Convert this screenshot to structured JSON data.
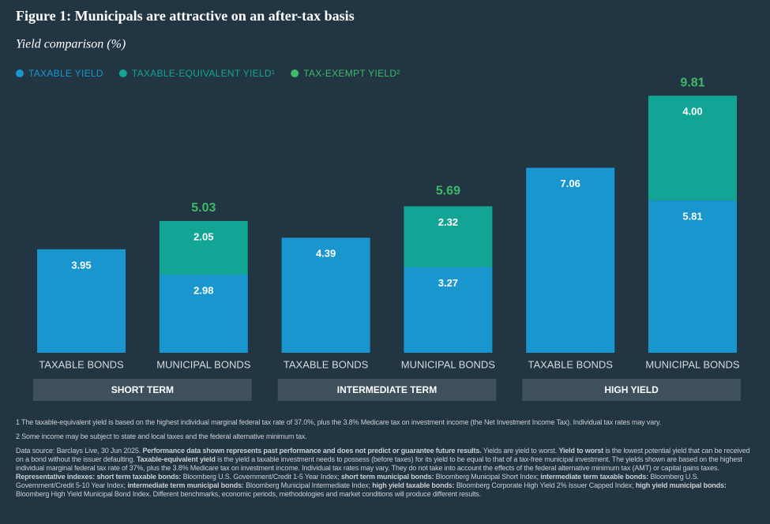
{
  "chart_data": {
    "type": "stacked_bar",
    "title": "Figure 1: Municipals are attractive on an after-tax basis",
    "subtitle": "Yield comparison (%)",
    "categories": [
      "TAXABLE BONDS",
      "MUNICIPAL BONDS",
      "TAXABLE BONDS",
      "MUNICIPAL BONDS",
      "TAXABLE BONDS",
      "MUNICIPAL BONDS"
    ],
    "groups": [
      "SHORT TERM",
      "INTERMEDIATE TERM",
      "HIGH YIELD"
    ],
    "series": [
      {
        "name": "TAXABLE YIELD",
        "color": "#1a96cf",
        "values": [
          3.95,
          2.98,
          4.39,
          3.27,
          7.06,
          5.81
        ]
      },
      {
        "name": "TAXABLE-EQUIVALENT YIELD¹",
        "color": "#12a596",
        "values": [
          null,
          2.05,
          null,
          2.32,
          null,
          4.0
        ],
        "value_labels": [
          null,
          "2.05",
          null,
          "2.32",
          null,
          "4.00"
        ]
      }
    ],
    "totals": {
      "name": "TAX-EXEMPT YIELD²",
      "color": "#3dba68",
      "values": [
        null,
        5.03,
        null,
        5.69,
        null,
        9.81
      ]
    },
    "ylim": [
      0,
      10
    ]
  },
  "notes": [
    [
      {
        "text": "1 The taxable-equivalent yield is based on the highest individual marginal federal tax rate of 37.0%, plus the 3.8% Medicare tax on investment income (the Net Investment Income Tax). Individual tax rates may vary."
      }
    ],
    [
      {
        "text": "2 Some income may be subject to state and local taxes and the federal alternative minimum tax."
      }
    ],
    [
      {
        "text": "Data source: Barclays Live, 30 Jun 2025. "
      },
      {
        "text": "Performance data shown represents past performance and does not predict or guarantee future results.",
        "bold": true
      },
      {
        "text": " Yields are yield to worst. "
      },
      {
        "text": "Yield to worst",
        "bold": true
      },
      {
        "text": " is the lowest potential yield that can be received on a bond without the issuer defaulting. "
      },
      {
        "text": "Taxable-equivalent yield",
        "bold": true
      },
      {
        "text": " is the yield a taxable investment needs to possess (before taxes) for its yield to be equal to that of a tax-free municipal investment. The yields shown are based on the highest individual marginal federal tax rate of 37%, plus the 3.8% Medicare tax on investment income. Individual tax rates may vary. They do not take into account the effects of the federal alternative minimum tax (AMT) or capital gains taxes. "
      },
      {
        "text": "Representative indexes: short term taxable bonds:",
        "bold": true
      },
      {
        "text": " Bloomberg U.S. Government/Credit 1-5 Year Index; "
      },
      {
        "text": "short term municipal bonds:",
        "bold": true
      },
      {
        "text": " Bloomberg Municipal Short Index; "
      },
      {
        "text": "intermediate term taxable bonds:",
        "bold": true
      },
      {
        "text": " Bloomberg U.S. Government/Credit 5-10 Year Index; "
      },
      {
        "text": "intermediate term municipal bonds:",
        "bold": true
      },
      {
        "text": " Bloomberg Municipal Intermediate Index; "
      },
      {
        "text": "high yield taxable bonds:",
        "bold": true
      },
      {
        "text": " Bloomberg Corporate High Yield 2% Issuer Capped Index; "
      },
      {
        "text": "high yield municipal bonds:",
        "bold": true
      },
      {
        "text": " Bloomberg High Yield Municipal Bond Index. Different benchmarks, economic periods, methodologies and market conditions will produce different results."
      }
    ]
  ]
}
